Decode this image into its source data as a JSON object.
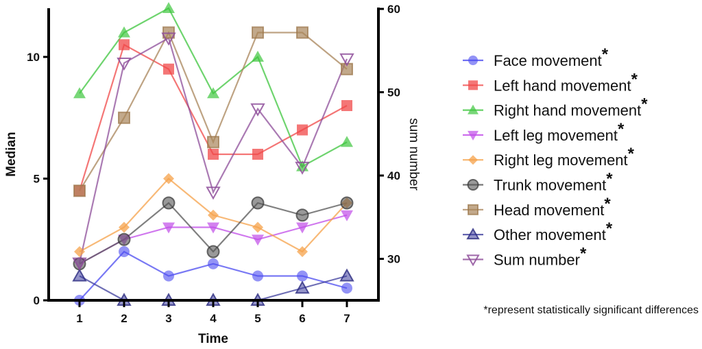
{
  "chart_data": {
    "type": "line",
    "title": "",
    "xlabel": "Time",
    "ylabel": "Median",
    "y2label": "sum number",
    "x": [
      1,
      2,
      3,
      4,
      5,
      6,
      7
    ],
    "x_tick_labels": [
      "1",
      "2",
      "3",
      "4",
      "5",
      "6",
      "7"
    ],
    "ylim": [
      0,
      12
    ],
    "y_ticks": [
      0,
      5,
      10
    ],
    "y_tick_labels": [
      "0",
      "5",
      "10"
    ],
    "y2lim": [
      25,
      60
    ],
    "y2_ticks": [
      30,
      40,
      50,
      60
    ],
    "y2_tick_labels": [
      "30",
      "40",
      "50",
      "60"
    ],
    "grid": false,
    "legend_position": "right",
    "series": [
      {
        "name": "Face movement",
        "marker": "circle",
        "color": "#4b4bf0",
        "axis": "left",
        "values": [
          0,
          2,
          1,
          1.5,
          1,
          1,
          0.5
        ]
      },
      {
        "name": "Left hand movement",
        "marker": "square",
        "color": "#f04848",
        "axis": "left",
        "values": [
          4.5,
          10.5,
          9.5,
          6,
          6,
          7,
          8
        ]
      },
      {
        "name": "Right hand movement",
        "marker": "triangle-up",
        "color": "#3ec63e",
        "axis": "left",
        "values": [
          8.5,
          11,
          12,
          8.5,
          10,
          5.5,
          6.5
        ]
      },
      {
        "name": "Left leg movement",
        "marker": "triangle-down",
        "color": "#c04be8",
        "axis": "left",
        "values": [
          1.5,
          2.5,
          3,
          3,
          2.5,
          3,
          3.5
        ]
      },
      {
        "name": "Right leg movement",
        "marker": "diamond",
        "color": "#f5a24a",
        "axis": "left",
        "values": [
          2,
          3,
          5,
          3.5,
          3,
          2,
          4
        ]
      },
      {
        "name": "Trunk movement",
        "marker": "circle-outlined",
        "color": "#555555",
        "axis": "left",
        "values": [
          1.5,
          2.5,
          4,
          2,
          4,
          3.5,
          4
        ]
      },
      {
        "name": "Head movement",
        "marker": "square-outlined",
        "color": "#a8845a",
        "axis": "left",
        "values": [
          4.5,
          7.5,
          11,
          6.5,
          11,
          11,
          9.5
        ]
      },
      {
        "name": "Other movement",
        "marker": "triangle-up-outlined",
        "color": "#3d3d9c",
        "axis": "left",
        "values": [
          1,
          0,
          0,
          0,
          0,
          0.5,
          1
        ]
      },
      {
        "name": "Sum number",
        "marker": "triangle-down-open",
        "color": "#8e4e9a",
        "axis": "right",
        "values": [
          29.5,
          53.5,
          56.5,
          38,
          48,
          41,
          54
        ]
      }
    ],
    "legend_suffix": "*",
    "footnote": "*represent statistically significant differences"
  }
}
